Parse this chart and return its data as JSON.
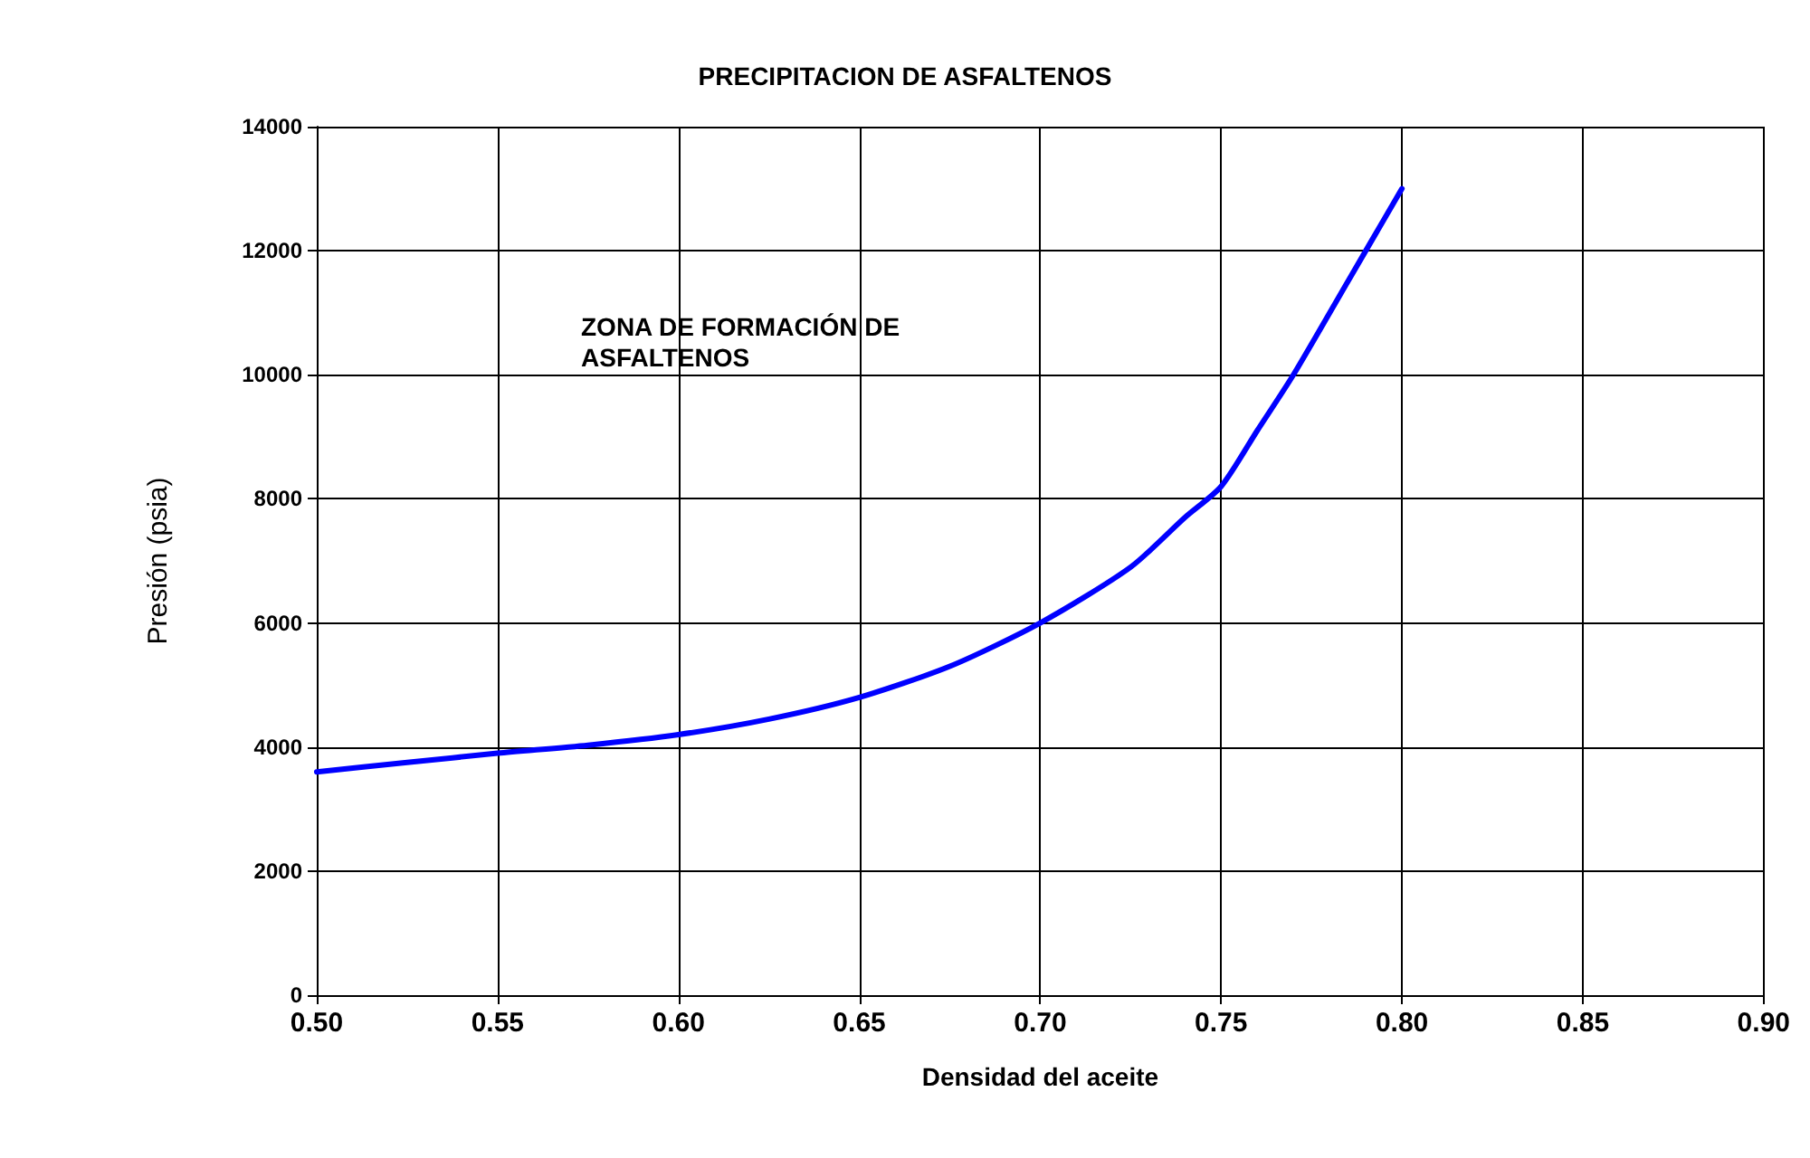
{
  "chart_data": {
    "type": "line",
    "title": "PRECIPITACION DE ASFALTENOS",
    "xlabel": "Densidad del aceite",
    "ylabel": "Presión (psia)",
    "x": [
      0.5,
      0.525,
      0.55,
      0.575,
      0.6,
      0.625,
      0.65,
      0.675,
      0.7,
      0.725,
      0.74,
      0.75,
      0.76,
      0.77,
      0.785,
      0.8
    ],
    "series": [
      {
        "color": "#0000ff",
        "values": [
          3600,
          3750,
          3900,
          4030,
          4200,
          4450,
          4800,
          5300,
          6000,
          6900,
          7700,
          8200,
          9100,
          10000,
          11500,
          13000
        ]
      }
    ],
    "xlim": [
      0.5,
      0.9
    ],
    "xticks": [
      {
        "value": 0.5,
        "label": "0.50"
      },
      {
        "value": 0.55,
        "label": "0.55"
      },
      {
        "value": 0.6,
        "label": "0.60"
      },
      {
        "value": 0.65,
        "label": "0.65"
      },
      {
        "value": 0.7,
        "label": "0.70"
      },
      {
        "value": 0.75,
        "label": "0.75"
      },
      {
        "value": 0.8,
        "label": "0.80"
      },
      {
        "value": 0.85,
        "label": "0.85"
      },
      {
        "value": 0.9,
        "label": "0.90"
      }
    ],
    "ylim": [
      0,
      14000
    ],
    "yticks": [
      0,
      2000,
      4000,
      6000,
      8000,
      10000,
      12000,
      14000
    ],
    "annotations": [
      "ZONA DE FORMACIÓN DE\nASFALTENOS"
    ],
    "grid": true,
    "marker": "none",
    "line_style": "solid"
  }
}
